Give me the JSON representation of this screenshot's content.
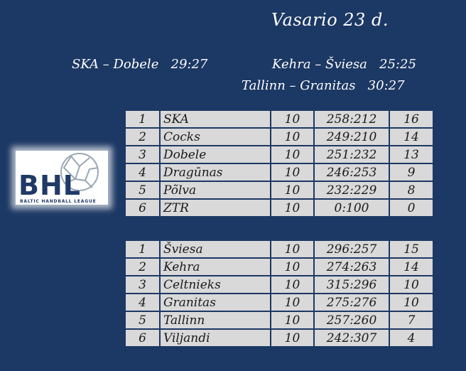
{
  "title": "Vasario 23 d.",
  "results": [
    "SKA – Dobele   29:27",
    "Kehra – Šviesa   25:25",
    "Tallinn – Granitas   30:27"
  ],
  "logo": {
    "text": "BHL",
    "subtitle": "BALTIC HANDBALL LEAGUE"
  },
  "groups": [
    {
      "rows": [
        {
          "pos": "1",
          "team": "SKA",
          "gp": "10",
          "goals": "258:212",
          "pts": "16"
        },
        {
          "pos": "2",
          "team": "Cocks",
          "gp": "10",
          "goals": "249:210",
          "pts": "14"
        },
        {
          "pos": "3",
          "team": "Dobele",
          "gp": "10",
          "goals": "251:232",
          "pts": "13"
        },
        {
          "pos": "4",
          "team": "Dragūnas",
          "gp": "10",
          "goals": "246:253",
          "pts": "9"
        },
        {
          "pos": "5",
          "team": "Põlva",
          "gp": "10",
          "goals": "232:229",
          "pts": "8"
        },
        {
          "pos": "6",
          "team": "ZTR",
          "gp": "10",
          "goals": "0:100",
          "pts": "0"
        }
      ]
    },
    {
      "rows": [
        {
          "pos": "1",
          "team": "Šviesa",
          "gp": "10",
          "goals": "296:257",
          "pts": "15"
        },
        {
          "pos": "2",
          "team": "Kehra",
          "gp": "10",
          "goals": "274:263",
          "pts": "14"
        },
        {
          "pos": "3",
          "team": "Celtnieks",
          "gp": "10",
          "goals": "315:296",
          "pts": "10"
        },
        {
          "pos": "4",
          "team": "Granitas",
          "gp": "10",
          "goals": "275:276",
          "pts": "10"
        },
        {
          "pos": "5",
          "team": "Tallinn",
          "gp": "10",
          "goals": "257:260",
          "pts": "7"
        },
        {
          "pos": "6",
          "team": "Viljandi",
          "gp": "10",
          "goals": "242:307",
          "pts": "4"
        }
      ]
    }
  ]
}
